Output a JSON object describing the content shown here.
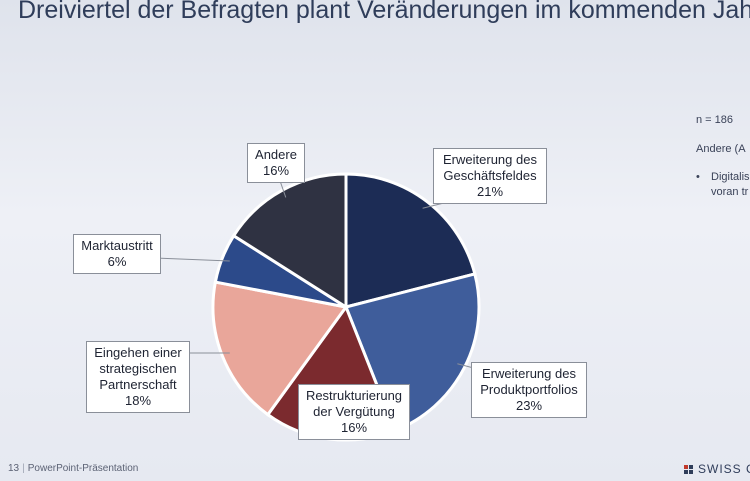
{
  "title": "Dreiviertel der Befragten plant Veränderungen im kommenden Jahr",
  "side_notes": {
    "n": "n = 186",
    "other": "Andere (A",
    "bullet_marker": "•",
    "bullet_line1": "Digitalis",
    "bullet_line2": "voran tr"
  },
  "footer": {
    "page": "13",
    "separator": "|",
    "caption": "PowerPoint-Präsentation",
    "logo": "SWISS C"
  },
  "colors": {
    "erweiterung_geschaeftsfeld": "#1c2c55",
    "erweiterung_produkt": "#3f5d9b",
    "restrukturierung": "#7b2a2e",
    "partnerschaft": "#e9a69a",
    "marktaustritt": "#2c4a8a",
    "andere": "#2f3242"
  },
  "chart_data": {
    "type": "pie",
    "slices": [
      {
        "label_lines": [
          "Erweiterung des",
          "Geschäftsfeldes"
        ],
        "value": 21,
        "value_label": "21%",
        "color_key": "erweiterung_geschaeftsfeld"
      },
      {
        "label_lines": [
          "Erweiterung des",
          "Produktportfolios"
        ],
        "value": 23,
        "value_label": "23%",
        "color_key": "erweiterung_produkt"
      },
      {
        "label_lines": [
          "Restrukturierung",
          "der Vergütung"
        ],
        "value": 16,
        "value_label": "16%",
        "color_key": "restrukturierung"
      },
      {
        "label_lines": [
          "Eingehen einer",
          "strategischen",
          "Partnerschaft"
        ],
        "value": 18,
        "value_label": "18%",
        "color_key": "partnerschaft"
      },
      {
        "label_lines": [
          "Marktaustritt"
        ],
        "value": 6,
        "value_label": "6%",
        "color_key": "marktaustritt"
      },
      {
        "label_lines": [
          "Andere"
        ],
        "value": 16,
        "value_label": "16%",
        "color_key": "andere"
      }
    ],
    "start_angle": "12 o'clock",
    "direction": "clockwise"
  }
}
